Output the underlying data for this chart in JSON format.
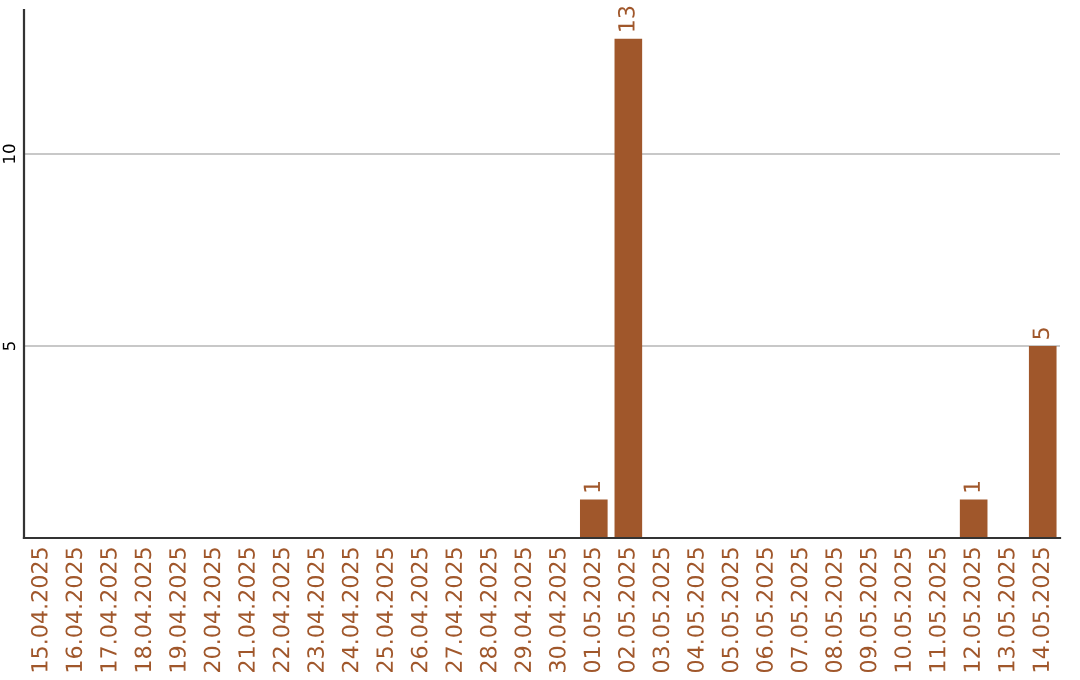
{
  "chart_data": {
    "type": "bar",
    "categories": [
      "15.04.2025",
      "16.04.2025",
      "17.04.2025",
      "18.04.2025",
      "19.04.2025",
      "20.04.2025",
      "21.04.2025",
      "22.04.2025",
      "23.04.2025",
      "24.04.2025",
      "25.04.2025",
      "26.04.2025",
      "27.04.2025",
      "28.04.2025",
      "29.04.2025",
      "30.04.2025",
      "01.05.2025",
      "02.05.2025",
      "03.05.2025",
      "04.05.2025",
      "05.05.2025",
      "06.05.2025",
      "07.05.2025",
      "08.05.2025",
      "09.05.2025",
      "10.05.2025",
      "11.05.2025",
      "12.05.2025",
      "13.05.2025",
      "14.05.2025"
    ],
    "values": [
      0,
      0,
      0,
      0,
      0,
      0,
      0,
      0,
      0,
      0,
      0,
      0,
      0,
      0,
      0,
      0,
      1,
      13,
      0,
      0,
      0,
      0,
      0,
      0,
      0,
      0,
      0,
      1,
      0,
      5
    ],
    "value_labels": [
      null,
      null,
      null,
      null,
      null,
      null,
      null,
      null,
      null,
      null,
      null,
      null,
      null,
      null,
      null,
      null,
      "1",
      "13",
      null,
      null,
      null,
      null,
      null,
      null,
      null,
      null,
      null,
      "1",
      null,
      "5"
    ],
    "color": "#a0572b",
    "ylim": [
      0,
      13.75
    ],
    "yticks": [
      5,
      10
    ],
    "grid": "y"
  }
}
